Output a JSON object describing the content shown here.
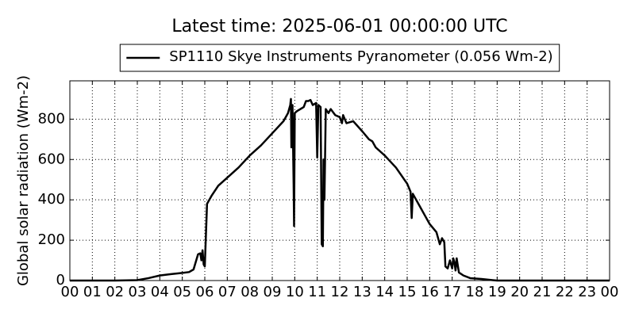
{
  "chart_data": {
    "type": "line",
    "title": "Latest time: 2025-06-01 00:00:00 UTC",
    "ylabel": "Global solar radiation (Wm-2)",
    "x": [
      0,
      1,
      2,
      3,
      3.5,
      4,
      4.5,
      5,
      5.3,
      5.5,
      5.7,
      5.8,
      5.85,
      5.9,
      5.95,
      6.0,
      6.1,
      6.3,
      6.6,
      7,
      7.5,
      8,
      8.5,
      9,
      9.5,
      9.7,
      9.8,
      9.83,
      9.85,
      9.9,
      9.95,
      9.97,
      10.0,
      10.1,
      10.4,
      10.5,
      10.6,
      10.7,
      10.8,
      10.95,
      11.0,
      11.05,
      11.15,
      11.2,
      11.25,
      11.28,
      11.32,
      11.38,
      11.5,
      11.6,
      11.8,
      12,
      12.1,
      12.15,
      12.3,
      12.6,
      13,
      13.3,
      13.45,
      13.6,
      14,
      14.5,
      15,
      15.15,
      15.2,
      15.25,
      15.5,
      15.8,
      16,
      16.3,
      16.4,
      16.45,
      16.55,
      16.65,
      16.7,
      16.8,
      16.9,
      17.0,
      17.05,
      17.1,
      17.15,
      17.2,
      17.3,
      17.5,
      17.8,
      18.3,
      18.8,
      19,
      24
    ],
    "series": [
      {
        "name": "SP1110 Skye Instruments Pyranometer (0.056 Wm-2)",
        "color": "#000000",
        "values": [
          0,
          0,
          0,
          2,
          12,
          25,
          32,
          38,
          42,
          55,
          130,
          135,
          100,
          150,
          80,
          70,
          380,
          420,
          470,
          510,
          560,
          620,
          670,
          730,
          790,
          830,
          870,
          900,
          660,
          870,
          480,
          270,
          830,
          840,
          860,
          890,
          890,
          895,
          870,
          880,
          610,
          870,
          860,
          180,
          170,
          600,
          400,
          850,
          830,
          850,
          820,
          810,
          780,
          820,
          780,
          790,
          740,
          700,
          690,
          660,
          620,
          560,
          480,
          440,
          310,
          430,
          380,
          320,
          280,
          240,
          200,
          180,
          210,
          190,
          70,
          60,
          100,
          60,
          110,
          90,
          50,
          110,
          40,
          25,
          12,
          8,
          2,
          0,
          0
        ]
      }
    ],
    "xlim": [
      0,
      24
    ],
    "xticks": [
      {
        "value": 0,
        "label": "00"
      },
      {
        "value": 1,
        "label": "01"
      },
      {
        "value": 2,
        "label": "02"
      },
      {
        "value": 3,
        "label": "03"
      },
      {
        "value": 4,
        "label": "04"
      },
      {
        "value": 5,
        "label": "05"
      },
      {
        "value": 6,
        "label": "06"
      },
      {
        "value": 7,
        "label": "07"
      },
      {
        "value": 8,
        "label": "08"
      },
      {
        "value": 9,
        "label": "09"
      },
      10,
      11,
      12,
      13,
      14,
      15,
      16,
      17,
      18,
      19,
      20,
      21,
      22,
      23,
      {
        "value": 24,
        "label": "00"
      }
    ],
    "ylim": [
      0,
      990
    ],
    "yticks": [
      0,
      200,
      400,
      600,
      800
    ],
    "grid": true,
    "legend": "top"
  }
}
